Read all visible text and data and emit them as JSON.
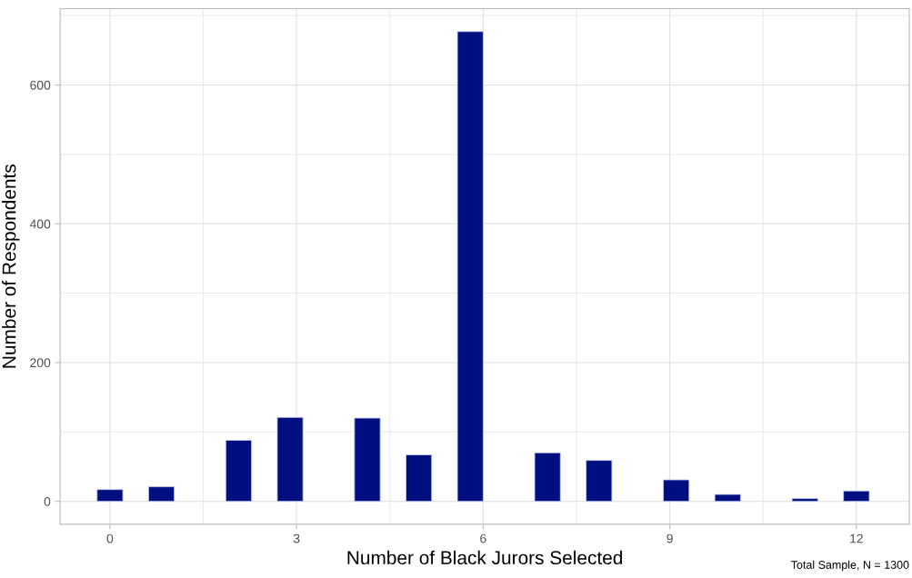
{
  "chart_data": {
    "type": "histogram",
    "xlabel": "Number of Black Jurors Selected",
    "ylabel": "Number of Respondents",
    "annotations": [
      "Total Sample, N = 1300"
    ],
    "bins": [
      -0.207,
      0.207,
      0.621,
      1.034,
      1.448,
      1.862,
      2.276,
      2.69,
      3.103,
      3.517,
      3.931,
      4.345,
      4.759,
      5.172,
      5.586,
      6.0,
      6.414,
      6.828,
      7.241,
      7.655,
      8.069,
      8.483,
      8.897,
      9.31,
      9.724,
      10.138,
      10.552,
      10.966,
      11.379,
      11.793,
      12.207
    ],
    "values": [
      17,
      0,
      21,
      0,
      0,
      88,
      0,
      121,
      0,
      0,
      120,
      0,
      67,
      0,
      677,
      0,
      0,
      70,
      0,
      59,
      0,
      0,
      31,
      0,
      10,
      0,
      0,
      4,
      0,
      15
    ],
    "color": "#000f80",
    "xlim": [
      -0.8,
      12.85
    ],
    "ylim": [
      -33,
      710
    ],
    "xticks": [
      0,
      3,
      6,
      9,
      12
    ],
    "yticks": [
      0,
      200,
      400,
      600
    ],
    "grid": true
  }
}
